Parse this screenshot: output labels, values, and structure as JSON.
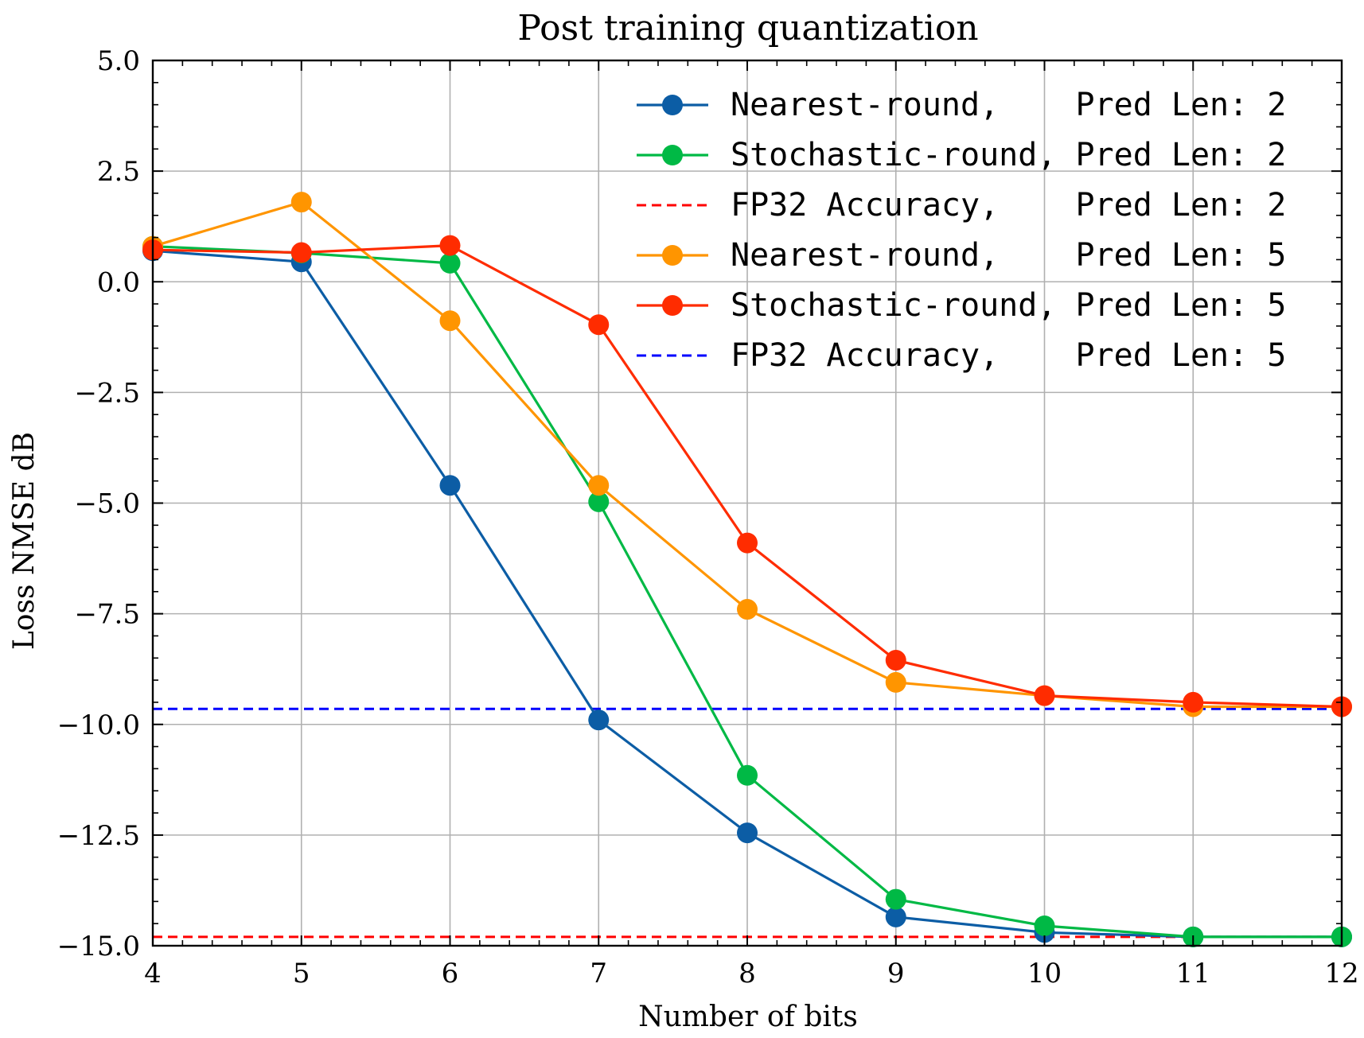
{
  "chart_data": {
    "type": "line",
    "title": "Post training quantization",
    "xlabel": "Number of bits",
    "ylabel": "Loss NMSE dB",
    "xlim": [
      4,
      12
    ],
    "ylim": [
      -15,
      5
    ],
    "xticks": [
      4,
      5,
      6,
      7,
      8,
      9,
      10,
      11,
      12
    ],
    "xtick_labels": [
      "4",
      "5",
      "6",
      "7",
      "8",
      "9",
      "10",
      "11",
      "12"
    ],
    "yticks": [
      5,
      2.5,
      0,
      -2.5,
      -5,
      -7.5,
      -10,
      -12.5,
      -15
    ],
    "ytick_labels": [
      "5.0",
      "2.5",
      "0.0",
      "−2.5",
      "−5.0",
      "−7.5",
      "−10.0",
      "−12.5",
      "−15.0"
    ],
    "grid": true,
    "legend_position": "top-right",
    "x": [
      4,
      5,
      6,
      7,
      8,
      9,
      10,
      11,
      12
    ],
    "series": [
      {
        "name": "Nearest-round,    Pred Len: 2",
        "kind": "markers",
        "color": "#0C5DA5",
        "values": [
          0.7,
          0.45,
          -4.6,
          -9.9,
          -12.45,
          -14.35,
          -14.7,
          -14.8,
          -14.8
        ]
      },
      {
        "name": "Stochastic-round, Pred Len: 2",
        "kind": "markers",
        "color": "#00B945",
        "values": [
          0.8,
          0.65,
          0.42,
          -4.97,
          -11.15,
          -13.95,
          -14.55,
          -14.8,
          -14.8
        ]
      },
      {
        "name": "FP32 Accuracy,    Pred Len: 2",
        "kind": "hline",
        "color": "#FF0000",
        "value": -14.8
      },
      {
        "name": "Nearest-round,    Pred Len: 5",
        "kind": "markers",
        "color": "#FF9500",
        "values": [
          0.8,
          1.8,
          -0.88,
          -4.6,
          -7.4,
          -9.05,
          -9.35,
          -9.6,
          -9.6
        ]
      },
      {
        "name": "Stochastic-round, Pred Len: 5",
        "kind": "markers",
        "color": "#FF2C00",
        "values": [
          0.72,
          0.66,
          0.82,
          -0.97,
          -5.9,
          -8.55,
          -9.35,
          -9.5,
          -9.6
        ]
      },
      {
        "name": "FP32 Accuracy,    Pred Len: 5",
        "kind": "hline",
        "color": "#0000FF",
        "value": -9.65
      }
    ]
  }
}
